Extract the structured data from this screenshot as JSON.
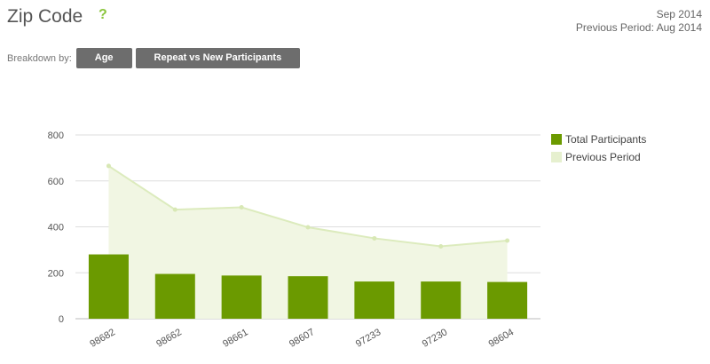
{
  "header": {
    "title": "Zip Code",
    "help_icon": "?",
    "period": "Sep 2014",
    "previous_period": "Previous Period: Aug 2014"
  },
  "breakdown": {
    "label": "Breakdown by:",
    "buttons": [
      "Age",
      "Repeat vs New Participants"
    ]
  },
  "chart_data": {
    "type": "bar",
    "categories": [
      "98682",
      "98662",
      "98661",
      "98607",
      "97233",
      "97230",
      "98604"
    ],
    "series": [
      {
        "name": "Total Participants",
        "type": "bar",
        "color": "#6b9a00",
        "values": [
          280,
          195,
          188,
          185,
          162,
          162,
          160
        ]
      },
      {
        "name": "Previous Period",
        "type": "area",
        "color": "#e6f0cf",
        "values": [
          665,
          475,
          485,
          398,
          350,
          315,
          340
        ]
      }
    ],
    "ylim": [
      0,
      800
    ],
    "yticks": [
      0,
      200,
      400,
      600,
      800
    ],
    "grid": true,
    "legend": "right"
  }
}
